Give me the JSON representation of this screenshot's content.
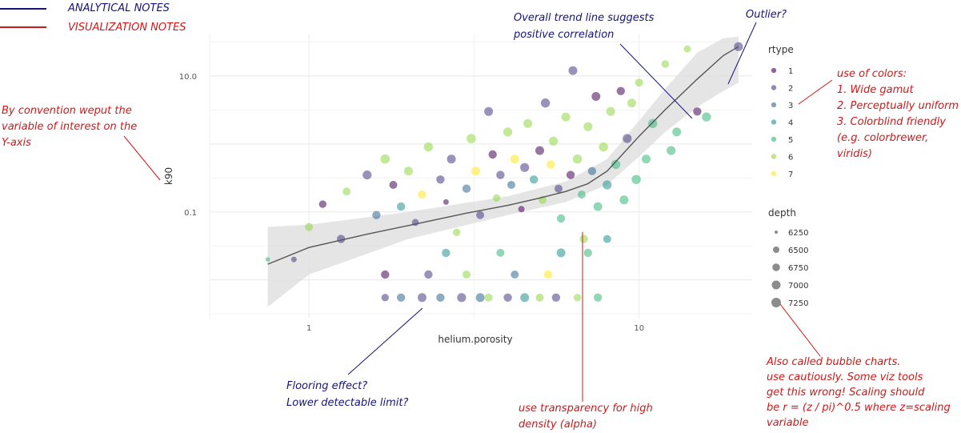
{
  "chart_data": {
    "type": "scatter",
    "xlabel": "helium.porosity",
    "ylabel": "k90",
    "x_scale": "log",
    "y_scale": "log",
    "xlim": [
      0.5,
      22
    ],
    "ylim": [
      0.0027,
      42
    ],
    "x_ticks": [
      {
        "value": 1,
        "label": "1"
      },
      {
        "value": 10,
        "label": "10"
      }
    ],
    "y_ticks": [
      {
        "value": 0.1,
        "label": "0.1"
      },
      {
        "value": 10,
        "label": "10.0"
      }
    ],
    "grid": true,
    "legend_position": "right",
    "color_legend": {
      "title": "rtype",
      "entries": [
        {
          "label": "1",
          "color": "#440154"
        },
        {
          "label": "2",
          "color": "#443a83"
        },
        {
          "label": "3",
          "color": "#31688e"
        },
        {
          "label": "4",
          "color": "#21908c"
        },
        {
          "label": "5",
          "color": "#35b779"
        },
        {
          "label": "6",
          "color": "#8fd744"
        },
        {
          "label": "7",
          "color": "#fde725"
        }
      ]
    },
    "size_legend": {
      "title": "depth",
      "entries": [
        {
          "label": "6250",
          "value": 6250
        },
        {
          "label": "6500",
          "value": 6500
        },
        {
          "label": "6750",
          "value": 6750
        },
        {
          "label": "7000",
          "value": 7000
        },
        {
          "label": "7250",
          "value": 7250
        }
      ]
    },
    "trend_line": [
      {
        "x": 0.75,
        "y": 0.017
      },
      {
        "x": 1.0,
        "y": 0.03
      },
      {
        "x": 1.5,
        "y": 0.047
      },
      {
        "x": 2.0,
        "y": 0.063
      },
      {
        "x": 3.0,
        "y": 0.096
      },
      {
        "x": 4.0,
        "y": 0.125
      },
      {
        "x": 5.0,
        "y": 0.16
      },
      {
        "x": 6.0,
        "y": 0.2
      },
      {
        "x": 7.0,
        "y": 0.26
      },
      {
        "x": 8.0,
        "y": 0.4
      },
      {
        "x": 10.0,
        "y": 1.3
      },
      {
        "x": 12.0,
        "y": 3.2
      },
      {
        "x": 15.0,
        "y": 9.0
      },
      {
        "x": 18.0,
        "y": 20.0
      },
      {
        "x": 20.0,
        "y": 27.0
      }
    ],
    "confidence_band": {
      "upper": [
        {
          "x": 0.75,
          "y": 0.06
        },
        {
          "x": 1.0,
          "y": 0.065
        },
        {
          "x": 2.0,
          "y": 0.1
        },
        {
          "x": 4.0,
          "y": 0.17
        },
        {
          "x": 6.0,
          "y": 0.28
        },
        {
          "x": 8.0,
          "y": 0.6
        },
        {
          "x": 10.0,
          "y": 2.2
        },
        {
          "x": 12.0,
          "y": 6.5
        },
        {
          "x": 15.0,
          "y": 22
        },
        {
          "x": 18.0,
          "y": 36
        },
        {
          "x": 20.0,
          "y": 38
        }
      ],
      "lower": [
        {
          "x": 0.75,
          "y": 0.004
        },
        {
          "x": 1.0,
          "y": 0.012
        },
        {
          "x": 2.0,
          "y": 0.04
        },
        {
          "x": 4.0,
          "y": 0.09
        },
        {
          "x": 6.0,
          "y": 0.14
        },
        {
          "x": 8.0,
          "y": 0.25
        },
        {
          "x": 10.0,
          "y": 0.65
        },
        {
          "x": 12.0,
          "y": 1.5
        },
        {
          "x": 15.0,
          "y": 3.5
        },
        {
          "x": 18.0,
          "y": 6.0
        },
        {
          "x": 20.0,
          "y": 8.0
        }
      ]
    },
    "points": [
      {
        "x": 0.75,
        "y": 0.02,
        "rtype": 5,
        "depth": 6300
      },
      {
        "x": 0.9,
        "y": 0.02,
        "rtype": 2,
        "depth": 6400
      },
      {
        "x": 1.0,
        "y": 0.06,
        "rtype": 6,
        "depth": 6800
      },
      {
        "x": 1.1,
        "y": 0.13,
        "rtype": 1,
        "depth": 6700
      },
      {
        "x": 1.25,
        "y": 0.04,
        "rtype": 2,
        "depth": 6900
      },
      {
        "x": 1.3,
        "y": 0.2,
        "rtype": 6,
        "depth": 6800
      },
      {
        "x": 1.5,
        "y": 0.35,
        "rtype": 2,
        "depth": 7050
      },
      {
        "x": 1.6,
        "y": 0.09,
        "rtype": 3,
        "depth": 6900
      },
      {
        "x": 1.7,
        "y": 0.6,
        "rtype": 6,
        "depth": 7150
      },
      {
        "x": 1.8,
        "y": 0.25,
        "rtype": 1,
        "depth": 6800
      },
      {
        "x": 1.9,
        "y": 0.12,
        "rtype": 4,
        "depth": 6900
      },
      {
        "x": 2.0,
        "y": 0.4,
        "rtype": 6,
        "depth": 7000
      },
      {
        "x": 2.1,
        "y": 0.07,
        "rtype": 2,
        "depth": 6600
      },
      {
        "x": 2.2,
        "y": 0.18,
        "rtype": 7,
        "depth": 6900
      },
      {
        "x": 2.3,
        "y": 0.9,
        "rtype": 6,
        "depth": 7100
      },
      {
        "x": 2.5,
        "y": 0.3,
        "rtype": 2,
        "depth": 6900
      },
      {
        "x": 2.6,
        "y": 0.14,
        "rtype": 1,
        "depth": 6400
      },
      {
        "x": 2.7,
        "y": 0.6,
        "rtype": 2,
        "depth": 7000
      },
      {
        "x": 2.8,
        "y": 0.05,
        "rtype": 6,
        "depth": 6700
      },
      {
        "x": 3.0,
        "y": 0.22,
        "rtype": 3,
        "depth": 6900
      },
      {
        "x": 3.1,
        "y": 1.2,
        "rtype": 6,
        "depth": 7150
      },
      {
        "x": 3.2,
        "y": 0.4,
        "rtype": 7,
        "depth": 7000
      },
      {
        "x": 3.3,
        "y": 0.09,
        "rtype": 2,
        "depth": 6800
      },
      {
        "x": 3.5,
        "y": 3.0,
        "rtype": 2,
        "depth": 7000
      },
      {
        "x": 3.6,
        "y": 0.7,
        "rtype": 1,
        "depth": 6900
      },
      {
        "x": 3.7,
        "y": 0.16,
        "rtype": 6,
        "depth": 6700
      },
      {
        "x": 3.8,
        "y": 0.35,
        "rtype": 2,
        "depth": 6900
      },
      {
        "x": 4.0,
        "y": 1.5,
        "rtype": 6,
        "depth": 7100
      },
      {
        "x": 4.1,
        "y": 0.25,
        "rtype": 3,
        "depth": 6800
      },
      {
        "x": 4.2,
        "y": 0.6,
        "rtype": 7,
        "depth": 7000
      },
      {
        "x": 4.4,
        "y": 0.11,
        "rtype": 1,
        "depth": 6500
      },
      {
        "x": 4.5,
        "y": 0.45,
        "rtype": 2,
        "depth": 7050
      },
      {
        "x": 4.6,
        "y": 2.0,
        "rtype": 6,
        "depth": 7000
      },
      {
        "x": 4.8,
        "y": 0.3,
        "rtype": 4,
        "depth": 6900
      },
      {
        "x": 5.0,
        "y": 0.8,
        "rtype": 1,
        "depth": 7000
      },
      {
        "x": 5.1,
        "y": 0.15,
        "rtype": 6,
        "depth": 6800
      },
      {
        "x": 5.2,
        "y": 4.0,
        "rtype": 2,
        "depth": 7100
      },
      {
        "x": 5.4,
        "y": 0.5,
        "rtype": 7,
        "depth": 6900
      },
      {
        "x": 5.5,
        "y": 1.1,
        "rtype": 6,
        "depth": 7050
      },
      {
        "x": 5.7,
        "y": 0.22,
        "rtype": 2,
        "depth": 6800
      },
      {
        "x": 5.8,
        "y": 0.08,
        "rtype": 5,
        "depth": 6900
      },
      {
        "x": 6.0,
        "y": 2.5,
        "rtype": 6,
        "depth": 7000
      },
      {
        "x": 6.2,
        "y": 0.35,
        "rtype": 1,
        "depth": 6900
      },
      {
        "x": 6.3,
        "y": 12.0,
        "rtype": 2,
        "depth": 7000
      },
      {
        "x": 6.5,
        "y": 0.6,
        "rtype": 6,
        "depth": 7100
      },
      {
        "x": 6.7,
        "y": 0.18,
        "rtype": 5,
        "depth": 6800
      },
      {
        "x": 7.0,
        "y": 1.8,
        "rtype": 6,
        "depth": 7050
      },
      {
        "x": 7.2,
        "y": 0.4,
        "rtype": 3,
        "depth": 6900
      },
      {
        "x": 7.4,
        "y": 5.0,
        "rtype": 1,
        "depth": 7000
      },
      {
        "x": 7.5,
        "y": 0.12,
        "rtype": 5,
        "depth": 7000
      },
      {
        "x": 7.8,
        "y": 0.9,
        "rtype": 6,
        "depth": 7100
      },
      {
        "x": 8.0,
        "y": 0.25,
        "rtype": 4,
        "depth": 7050
      },
      {
        "x": 8.2,
        "y": 3.0,
        "rtype": 6,
        "depth": 7000
      },
      {
        "x": 8.5,
        "y": 0.5,
        "rtype": 5,
        "depth": 7100
      },
      {
        "x": 8.8,
        "y": 6.0,
        "rtype": 1,
        "depth": 6900
      },
      {
        "x": 9.0,
        "y": 0.15,
        "rtype": 5,
        "depth": 7000
      },
      {
        "x": 9.2,
        "y": 1.2,
        "rtype": 2,
        "depth": 7050
      },
      {
        "x": 9.5,
        "y": 4.0,
        "rtype": 6,
        "depth": 7000
      },
      {
        "x": 9.8,
        "y": 0.3,
        "rtype": 5,
        "depth": 7150
      },
      {
        "x": 10.0,
        "y": 8.0,
        "rtype": 6,
        "depth": 6800
      },
      {
        "x": 10.5,
        "y": 0.6,
        "rtype": 5,
        "depth": 7000
      },
      {
        "x": 11.0,
        "y": 2.0,
        "rtype": 5,
        "depth": 7100
      },
      {
        "x": 12.0,
        "y": 15.0,
        "rtype": 6,
        "depth": 6700
      },
      {
        "x": 12.5,
        "y": 0.8,
        "rtype": 5,
        "depth": 7050
      },
      {
        "x": 13.0,
        "y": 1.5,
        "rtype": 5,
        "depth": 7000
      },
      {
        "x": 14.0,
        "y": 25.0,
        "rtype": 6,
        "depth": 6600
      },
      {
        "x": 15.0,
        "y": 3.0,
        "rtype": 1,
        "depth": 6900
      },
      {
        "x": 16.0,
        "y": 2.5,
        "rtype": 5,
        "depth": 7100
      },
      {
        "x": 20.0,
        "y": 27.0,
        "rtype": 2,
        "depth": 7050
      },
      {
        "x": 1.7,
        "y": 0.0055,
        "rtype": 2,
        "depth": 6700
      },
      {
        "x": 1.9,
        "y": 0.0055,
        "rtype": 3,
        "depth": 6900
      },
      {
        "x": 2.2,
        "y": 0.0055,
        "rtype": 2,
        "depth": 7000
      },
      {
        "x": 2.5,
        "y": 0.0055,
        "rtype": 3,
        "depth": 6900
      },
      {
        "x": 2.9,
        "y": 0.0055,
        "rtype": 2,
        "depth": 7050
      },
      {
        "x": 3.3,
        "y": 0.0055,
        "rtype": 3,
        "depth": 7000
      },
      {
        "x": 3.5,
        "y": 0.0055,
        "rtype": 6,
        "depth": 6800
      },
      {
        "x": 4.0,
        "y": 0.0055,
        "rtype": 2,
        "depth": 6900
      },
      {
        "x": 4.5,
        "y": 0.0055,
        "rtype": 4,
        "depth": 7000
      },
      {
        "x": 5.0,
        "y": 0.0055,
        "rtype": 6,
        "depth": 6800
      },
      {
        "x": 5.6,
        "y": 0.0055,
        "rtype": 2,
        "depth": 6900
      },
      {
        "x": 6.5,
        "y": 0.0055,
        "rtype": 6,
        "depth": 6700
      },
      {
        "x": 7.5,
        "y": 0.0055,
        "rtype": 5,
        "depth": 6900
      },
      {
        "x": 1.7,
        "y": 0.012,
        "rtype": 1,
        "depth": 6900
      },
      {
        "x": 2.3,
        "y": 0.012,
        "rtype": 2,
        "depth": 6900
      },
      {
        "x": 3.0,
        "y": 0.012,
        "rtype": 6,
        "depth": 6800
      },
      {
        "x": 4.2,
        "y": 0.012,
        "rtype": 3,
        "depth": 6800
      },
      {
        "x": 5.3,
        "y": 0.012,
        "rtype": 7,
        "depth": 6900
      },
      {
        "x": 2.6,
        "y": 0.025,
        "rtype": 4,
        "depth": 6900
      },
      {
        "x": 3.8,
        "y": 0.025,
        "rtype": 5,
        "depth": 6800
      },
      {
        "x": 5.8,
        "y": 0.025,
        "rtype": 4,
        "depth": 7000
      },
      {
        "x": 7.0,
        "y": 0.025,
        "rtype": 5,
        "depth": 6900
      },
      {
        "x": 8.0,
        "y": 0.04,
        "rtype": 4,
        "depth": 6800
      },
      {
        "x": 6.8,
        "y": 0.04,
        "rtype": 6,
        "depth": 6900
      }
    ]
  },
  "key": {
    "analytical_label": "ANALYTICAL NOTES",
    "analytical_color": "#14147a",
    "visual_label": "VISUALIZATION NOTES",
    "visual_color": "#d01818"
  },
  "notes": {
    "trend": [
      "Overall trend line suggests",
      "positive correlation"
    ],
    "outlier": [
      "Outlier?"
    ],
    "convention": [
      "By convention weput the",
      "variable of interest on the",
      "Y-axis"
    ],
    "colors": [
      "use of colors:",
      "1. Wide gamut",
      "2. Perceptually uniform",
      "3. Colorblind friendly",
      "(e.g. colorbrewer,",
      "viridis)"
    ],
    "flooring": [
      "Flooring effect?",
      "Lower detectable limit?"
    ],
    "transparency": [
      "use transparency for high",
      "density (alpha)"
    ],
    "bubble": [
      "Also called bubble charts.",
      "use cautiously. Some viz tools",
      "get this wrong! Scaling should",
      "be r = (z / pi)^0.5 where z=scaling",
      "variable"
    ]
  }
}
